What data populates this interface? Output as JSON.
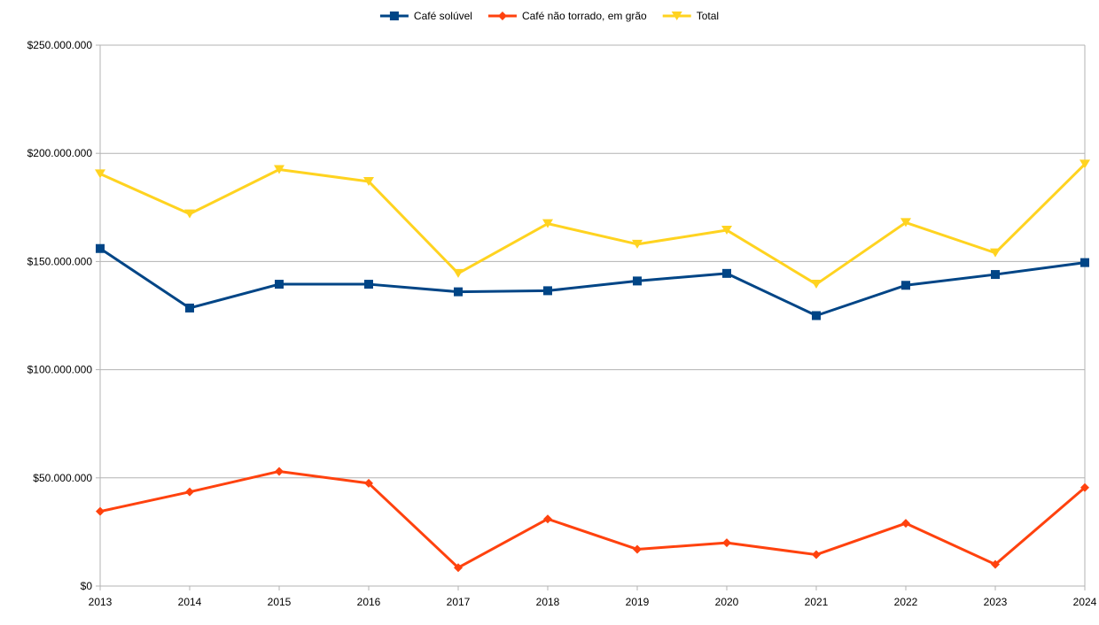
{
  "chart_data": {
    "type": "line",
    "title": "",
    "xlabel": "",
    "ylabel": "",
    "ylim": [
      0,
      250000000
    ],
    "y_ticks": [
      0,
      50000000,
      100000000,
      150000000,
      200000000,
      250000000
    ],
    "y_tick_labels": [
      "$0",
      "$50.000.000",
      "$100.000.000",
      "$150.000.000",
      "$200.000.000",
      "$250.000.000"
    ],
    "grid": true,
    "legend_position": "top-center",
    "categories": [
      "2013",
      "2014",
      "2015",
      "2016",
      "2017",
      "2018",
      "2019",
      "2020",
      "2021",
      "2022",
      "2023",
      "2024"
    ],
    "series": [
      {
        "name": "Café solúvel",
        "color": "#004586",
        "marker": "square",
        "values": [
          156000000,
          128500000,
          139500000,
          139500000,
          136000000,
          136500000,
          141000000,
          144500000,
          125000000,
          139000000,
          144000000,
          149500000
        ]
      },
      {
        "name": "Café não torrado, em grão",
        "color": "#ff420e",
        "marker": "diamond",
        "values": [
          34500000,
          43500000,
          53000000,
          47500000,
          8500000,
          31000000,
          17000000,
          20000000,
          14500000,
          29000000,
          10000000,
          45500000
        ]
      },
      {
        "name": "Total",
        "color": "#ffd320",
        "marker": "triangle-down",
        "values": [
          190500000,
          172000000,
          192500000,
          187000000,
          144500000,
          167500000,
          158000000,
          164500000,
          139500000,
          168000000,
          154000000,
          195000000
        ]
      }
    ]
  }
}
